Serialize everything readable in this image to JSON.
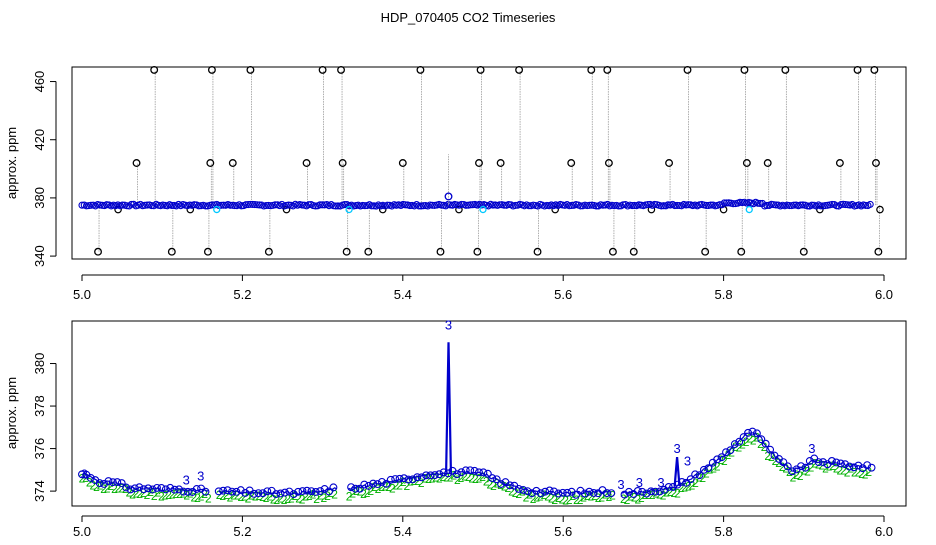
{
  "title": "HDP_070405  CO2 Timeseries",
  "colors": {
    "raw_points": "#000000",
    "raw_lines": "#9a9a9a",
    "blue": "#0000cc",
    "cyan": "#00c8ff",
    "green": "#00b000",
    "axis": "#000000"
  },
  "chart_data": [
    {
      "type": "scatter",
      "title": "HDP_070405  CO2 Timeseries",
      "xlabel": "",
      "ylabel": "approx. ppm",
      "xlim": [
        5.0,
        6.0
      ],
      "ylim": [
        338,
        470
      ],
      "x_ticks": [
        "5.0",
        "5.2",
        "5.4",
        "5.6",
        "5.8",
        "6.0"
      ],
      "y_ticks": [
        "340",
        "380",
        "420",
        "460"
      ],
      "grid": false,
      "baseline_level": 375,
      "spikes": [
        {
          "x": 5.02,
          "y": 343
        },
        {
          "x": 5.068,
          "y": 404
        },
        {
          "x": 5.09,
          "y": 468
        },
        {
          "x": 5.112,
          "y": 343
        },
        {
          "x": 5.157,
          "y": 343
        },
        {
          "x": 5.16,
          "y": 404
        },
        {
          "x": 5.162,
          "y": 468
        },
        {
          "x": 5.188,
          "y": 404
        },
        {
          "x": 5.21,
          "y": 468
        },
        {
          "x": 5.233,
          "y": 343
        },
        {
          "x": 5.28,
          "y": 404
        },
        {
          "x": 5.3,
          "y": 468
        },
        {
          "x": 5.323,
          "y": 468
        },
        {
          "x": 5.325,
          "y": 404
        },
        {
          "x": 5.33,
          "y": 343
        },
        {
          "x": 5.357,
          "y": 343
        },
        {
          "x": 5.4,
          "y": 404
        },
        {
          "x": 5.422,
          "y": 468
        },
        {
          "x": 5.447,
          "y": 343
        },
        {
          "x": 5.493,
          "y": 343
        },
        {
          "x": 5.495,
          "y": 404
        },
        {
          "x": 5.497,
          "y": 468
        },
        {
          "x": 5.522,
          "y": 404
        },
        {
          "x": 5.545,
          "y": 468
        },
        {
          "x": 5.568,
          "y": 343
        },
        {
          "x": 5.61,
          "y": 404
        },
        {
          "x": 5.635,
          "y": 468
        },
        {
          "x": 5.655,
          "y": 468
        },
        {
          "x": 5.657,
          "y": 404
        },
        {
          "x": 5.662,
          "y": 343
        },
        {
          "x": 5.688,
          "y": 343
        },
        {
          "x": 5.732,
          "y": 404
        },
        {
          "x": 5.755,
          "y": 468
        },
        {
          "x": 5.777,
          "y": 343
        },
        {
          "x": 5.822,
          "y": 343
        },
        {
          "x": 5.826,
          "y": 468
        },
        {
          "x": 5.829,
          "y": 404
        },
        {
          "x": 5.855,
          "y": 404
        },
        {
          "x": 5.877,
          "y": 468
        },
        {
          "x": 5.9,
          "y": 343
        },
        {
          "x": 5.945,
          "y": 404
        },
        {
          "x": 5.967,
          "y": 468
        },
        {
          "x": 5.988,
          "y": 468
        },
        {
          "x": 5.99,
          "y": 404
        },
        {
          "x": 5.993,
          "y": 343
        }
      ],
      "dips": [
        {
          "x": 5.045,
          "y": 372
        },
        {
          "x": 5.135,
          "y": 372
        },
        {
          "x": 5.255,
          "y": 372
        },
        {
          "x": 5.375,
          "y": 372
        },
        {
          "x": 5.47,
          "y": 372
        },
        {
          "x": 5.59,
          "y": 372
        },
        {
          "x": 5.71,
          "y": 372
        },
        {
          "x": 5.8,
          "y": 372
        },
        {
          "x": 5.92,
          "y": 372
        },
        {
          "x": 5.995,
          "y": 372
        }
      ],
      "outlier_blue": {
        "x": 5.457,
        "y": 381
      },
      "cyan_points": [
        {
          "x": 5.168,
          "y": 372
        },
        {
          "x": 5.333,
          "y": 372
        },
        {
          "x": 5.5,
          "y": 372
        },
        {
          "x": 5.832,
          "y": 372
        }
      ]
    },
    {
      "type": "line",
      "xlabel": "",
      "ylabel": "approx. ppm",
      "xlim": [
        5.0,
        6.0
      ],
      "ylim": [
        373.3,
        382.0
      ],
      "x_ticks": [
        "5.0",
        "5.2",
        "5.4",
        "5.6",
        "5.8",
        "6.0"
      ],
      "y_ticks": [
        "374",
        "376",
        "378",
        "380"
      ],
      "grid": false,
      "point_symbols": {
        "blue": "o",
        "green": "2",
        "outlier": "3"
      },
      "gaps": [
        [
          5.158,
          5.168
        ],
        [
          5.318,
          5.332
        ],
        [
          5.662,
          5.672
        ]
      ],
      "x_range": [
        5.0,
        5.985
      ],
      "profile": [
        {
          "x": 5.0,
          "y": 374.8
        },
        {
          "x": 5.01,
          "y": 374.7
        },
        {
          "x": 5.02,
          "y": 374.45
        },
        {
          "x": 5.04,
          "y": 374.4
        },
        {
          "x": 5.06,
          "y": 374.15
        },
        {
          "x": 5.1,
          "y": 374.1
        },
        {
          "x": 5.14,
          "y": 374.05
        },
        {
          "x": 5.158,
          "y": 374.0
        },
        {
          "x": 5.168,
          "y": 374.0
        },
        {
          "x": 5.2,
          "y": 373.95
        },
        {
          "x": 5.26,
          "y": 373.9
        },
        {
          "x": 5.3,
          "y": 374.0
        },
        {
          "x": 5.318,
          "y": 374.15
        },
        {
          "x": 5.332,
          "y": 374.1
        },
        {
          "x": 5.36,
          "y": 374.3
        },
        {
          "x": 5.4,
          "y": 374.55
        },
        {
          "x": 5.44,
          "y": 374.85
        },
        {
          "x": 5.48,
          "y": 374.9
        },
        {
          "x": 5.5,
          "y": 374.85
        },
        {
          "x": 5.52,
          "y": 374.45
        },
        {
          "x": 5.54,
          "y": 374.2
        },
        {
          "x": 5.56,
          "y": 374.0
        },
        {
          "x": 5.6,
          "y": 373.9
        },
        {
          "x": 5.64,
          "y": 373.95
        },
        {
          "x": 5.662,
          "y": 374.0
        },
        {
          "x": 5.672,
          "y": 373.9
        },
        {
          "x": 5.7,
          "y": 373.95
        },
        {
          "x": 5.74,
          "y": 374.2
        },
        {
          "x": 5.76,
          "y": 374.6
        },
        {
          "x": 5.78,
          "y": 375.1
        },
        {
          "x": 5.8,
          "y": 375.7
        },
        {
          "x": 5.82,
          "y": 376.4
        },
        {
          "x": 5.832,
          "y": 376.8
        },
        {
          "x": 5.845,
          "y": 376.6
        },
        {
          "x": 5.855,
          "y": 376.0
        },
        {
          "x": 5.87,
          "y": 375.4
        },
        {
          "x": 5.885,
          "y": 375.0
        },
        {
          "x": 5.9,
          "y": 375.1
        },
        {
          "x": 5.91,
          "y": 375.45
        },
        {
          "x": 5.93,
          "y": 375.35
        },
        {
          "x": 5.96,
          "y": 375.2
        },
        {
          "x": 5.985,
          "y": 375.1
        }
      ],
      "spike_peaks": [
        {
          "x": 5.457,
          "y": 381.0
        },
        {
          "x": 5.742,
          "y": 375.6
        }
      ],
      "outlier_labels": [
        {
          "x": 5.003,
          "y": 374.6
        },
        {
          "x": 5.13,
          "y": 374.3
        },
        {
          "x": 5.148,
          "y": 374.5
        },
        {
          "x": 5.457,
          "y": 381.6
        },
        {
          "x": 5.672,
          "y": 374.1
        },
        {
          "x": 5.695,
          "y": 374.2
        },
        {
          "x": 5.722,
          "y": 374.2
        },
        {
          "x": 5.742,
          "y": 375.8
        },
        {
          "x": 5.755,
          "y": 375.2
        },
        {
          "x": 5.91,
          "y": 375.8
        }
      ]
    }
  ]
}
